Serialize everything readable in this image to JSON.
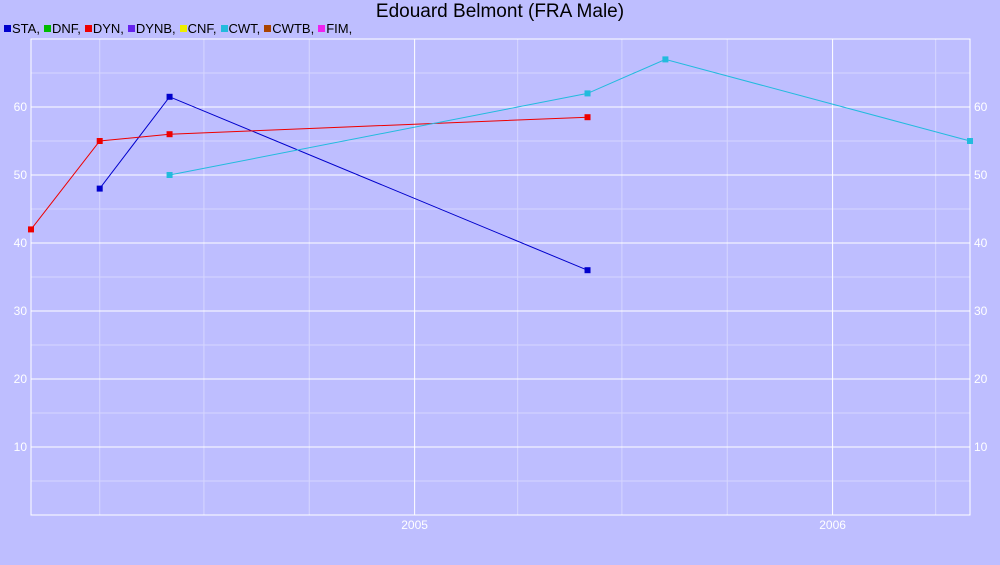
{
  "chart_data": {
    "type": "line",
    "title": "Edouard Belmont (FRA Male)",
    "legend": [
      {
        "label": "STA,",
        "color": "#0000cc"
      },
      {
        "label": "DNF,",
        "color": "#00bb00"
      },
      {
        "label": "DYN,",
        "color": "#ee0000"
      },
      {
        "label": "DYNB,",
        "color": "#6622ee"
      },
      {
        "label": "CNF,",
        "color": "#eeee00"
      },
      {
        "label": "CWT,",
        "color": "#22bbdd"
      },
      {
        "label": "CWTB,",
        "color": "#aa4400"
      },
      {
        "label": "FIM,",
        "color": "#ee22ee"
      }
    ],
    "legend_position": "top-left",
    "x_ticks": [
      {
        "label": "2005",
        "value": "2005-01-01"
      },
      {
        "label": "2006",
        "value": "2006-01-01"
      }
    ],
    "x_range": [
      "2004-02-01",
      "2006-05-01"
    ],
    "y_ticks": [
      10,
      20,
      30,
      40,
      50,
      60
    ],
    "y_range": [
      0,
      70
    ],
    "grid": true,
    "series": [
      {
        "name": "STA",
        "color": "#0000cc",
        "points": [
          {
            "x": "2004-04-01",
            "y": 48
          },
          {
            "x": "2004-06-01",
            "y": 61.5
          },
          {
            "x": "2005-06-01",
            "y": 36
          }
        ]
      },
      {
        "name": "DYN",
        "color": "#ee0000",
        "points": [
          {
            "x": "2004-02-01",
            "y": 42
          },
          {
            "x": "2004-04-01",
            "y": 55
          },
          {
            "x": "2004-06-01",
            "y": 56
          },
          {
            "x": "2005-06-01",
            "y": 58.5
          }
        ]
      },
      {
        "name": "CWT",
        "color": "#22bbdd",
        "points": [
          {
            "x": "2004-06-01",
            "y": 50
          },
          {
            "x": "2005-06-01",
            "y": 62
          },
          {
            "x": "2005-08-08",
            "y": 67
          },
          {
            "x": "2006-05-01",
            "y": 55
          }
        ]
      }
    ]
  }
}
